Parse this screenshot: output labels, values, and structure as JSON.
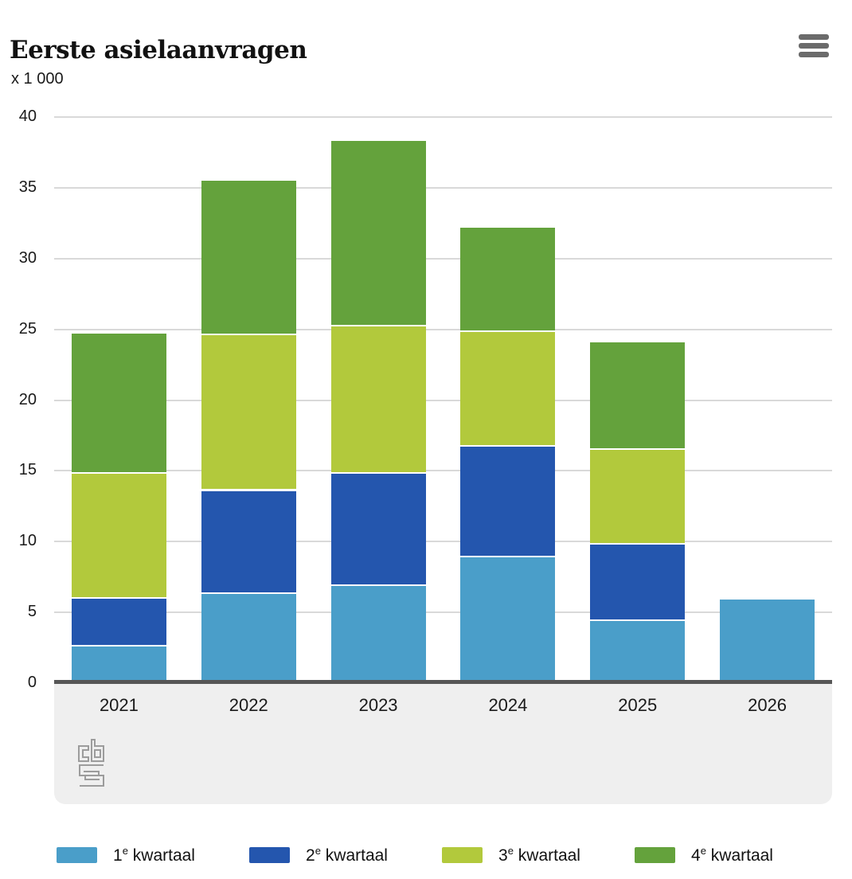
{
  "header": {
    "title": "Eerste asielaanvragen",
    "unit_label": "x 1 000",
    "menu_icon": "hamburger-menu-icon"
  },
  "chart_data": {
    "type": "bar",
    "stacked": true,
    "title": "Eerste asielaanvragen",
    "ylabel": "x 1 000",
    "xlabel": "",
    "categories": [
      "2021",
      "2022",
      "2023",
      "2024",
      "2025",
      "2026"
    ],
    "series": [
      {
        "name": "1e kwartaal",
        "color": "#4A9EC9",
        "values": [
          2.7,
          6.4,
          7.0,
          9.0,
          4.5,
          5.9
        ]
      },
      {
        "name": "2e kwartaal",
        "color": "#2456AE",
        "values": [
          3.4,
          7.3,
          7.9,
          7.8,
          5.4,
          null
        ]
      },
      {
        "name": "3e kwartaal",
        "color": "#B2C93C",
        "values": [
          8.8,
          11.0,
          10.4,
          8.1,
          6.7,
          null
        ]
      },
      {
        "name": "4e kwartaal",
        "color": "#64A23C",
        "values": [
          9.8,
          10.8,
          13.0,
          7.3,
          7.5,
          null
        ]
      }
    ],
    "totals": [
      24.7,
      35.5,
      38.3,
      32.2,
      24.1,
      5.9
    ],
    "ylim": [
      0,
      40
    ],
    "yticks": [
      0,
      5,
      10,
      15,
      20,
      25,
      30,
      35,
      40
    ],
    "grid": true,
    "legend_position": "bottom"
  },
  "legend": {
    "items": [
      {
        "num": "1",
        "sup": "e",
        "text": " kwartaal",
        "color": "#4A9EC9"
      },
      {
        "num": "2",
        "sup": "e",
        "text": " kwartaal",
        "color": "#2456AE"
      },
      {
        "num": "3",
        "sup": "e",
        "text": " kwartaal",
        "color": "#B2C93C"
      },
      {
        "num": "4",
        "sup": "e",
        "text": " kwartaal",
        "color": "#64A23C"
      }
    ]
  },
  "footer": {
    "logo": "cbs-logo"
  },
  "colors": {
    "axis": "#565656",
    "gridline": "#d9d9d9",
    "band_background": "#efefef",
    "logo_gray": "#9c9c9c"
  }
}
